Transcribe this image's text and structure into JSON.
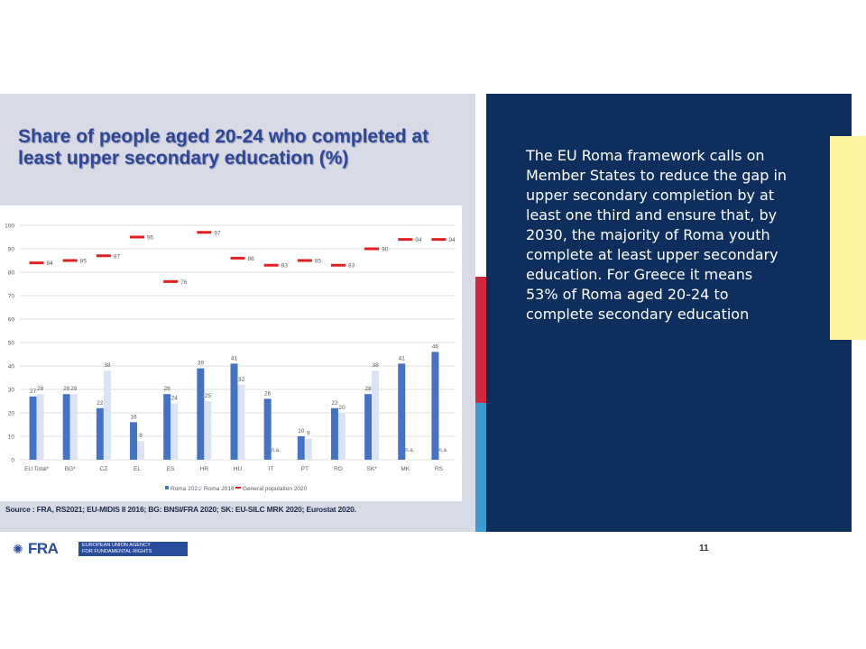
{
  "title": "Share of people aged 20-24 who completed at least upper secondary education (%)",
  "body_text": "The EU Roma framework calls on Member States to reduce the gap in upper secondary completion by at least one third and ensure that, by 2030, the majority of Roma youth complete at least upper secondary education. For Greece it means 53% of Roma aged 20-24 to complete secondary education",
  "source": "Source : FRA, RS2021; EU-MIDIS II 2016; BG: BNSI/FRA 2020; SK: EU-SILC MRK 2020; Eurostat 2020.",
  "page_number": "11",
  "footer": {
    "logo_text": "FRA",
    "agency_line1": "EUROPEAN UNION AGENCY",
    "agency_line2": "FOR FUNDAMENTAL RIGHTS"
  },
  "colors": {
    "panel_dark": "#0e2f5e",
    "title": "#2f4795",
    "roma2021": "#4472c4",
    "roma2016": "#dae3f3",
    "general": "#e02020"
  },
  "chart_data": {
    "type": "bar",
    "ylim": [
      0,
      100
    ],
    "yticks": [
      "0",
      "10",
      "20",
      "30",
      "40",
      "50",
      "60",
      "70",
      "80",
      "90",
      "100"
    ],
    "grid": true,
    "legend_position": "bottom",
    "categories": [
      "EU Total*",
      "BG*",
      "CZ",
      "EL",
      "ES",
      "HR",
      "HU",
      "IT",
      "PT",
      "RO",
      "SK*",
      "MK",
      "RS"
    ],
    "series": [
      {
        "name": "Roma 2021",
        "values": [
          27,
          28,
          22,
          16,
          28,
          39,
          41,
          26,
          10,
          22,
          28,
          41,
          46
        ]
      },
      {
        "name": "Roma 2016",
        "values": [
          28,
          28,
          38,
          8,
          24,
          25,
          32,
          null,
          9,
          20,
          38,
          null,
          null
        ],
        "labels": [
          "28",
          "28",
          "38",
          "8",
          "24",
          "25",
          "32",
          "n.a.",
          "9",
          "20",
          "38",
          "n.a.",
          "n.a."
        ]
      },
      {
        "name": "General population 2020",
        "values": [
          84,
          85,
          87,
          95,
          76,
          97,
          86,
          83,
          85,
          83,
          90,
          94,
          94
        ]
      }
    ]
  }
}
